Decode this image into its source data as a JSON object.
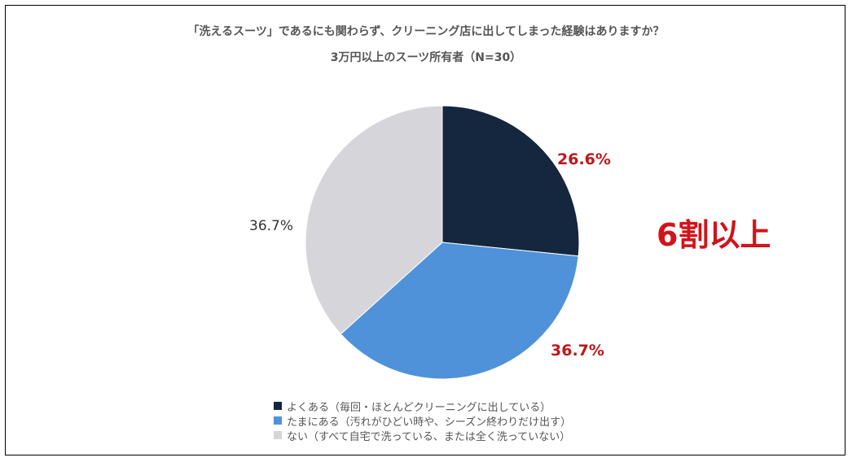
{
  "colors": {
    "often": "#15263f",
    "sometimes": "#4f92d9",
    "never": "#d6d5d9",
    "highlight": "#d0141a"
  },
  "chart_data": {
    "type": "pie",
    "title": "「洗えるスーツ」であるにも関わらず、クリーニング店に出してしまった経験はありますか？",
    "subtitle": "3万円以上のスーツ所有者（N=30）",
    "slices": [
      {
        "name": "よくある（毎回・ほとんどクリーニングに出している）",
        "value": 26.6,
        "label": "26.6%"
      },
      {
        "name": "たまにある（汚れがひどい時や、シーズン終わりだけ出す）",
        "value": 36.7,
        "label": "36.7%"
      },
      {
        "name": "ない（すべて自宅で洗っている、または全く洗っていない）",
        "value": 36.7,
        "label": "36.7%"
      }
    ],
    "annotation": "6割以上",
    "legend_position": "bottom"
  }
}
